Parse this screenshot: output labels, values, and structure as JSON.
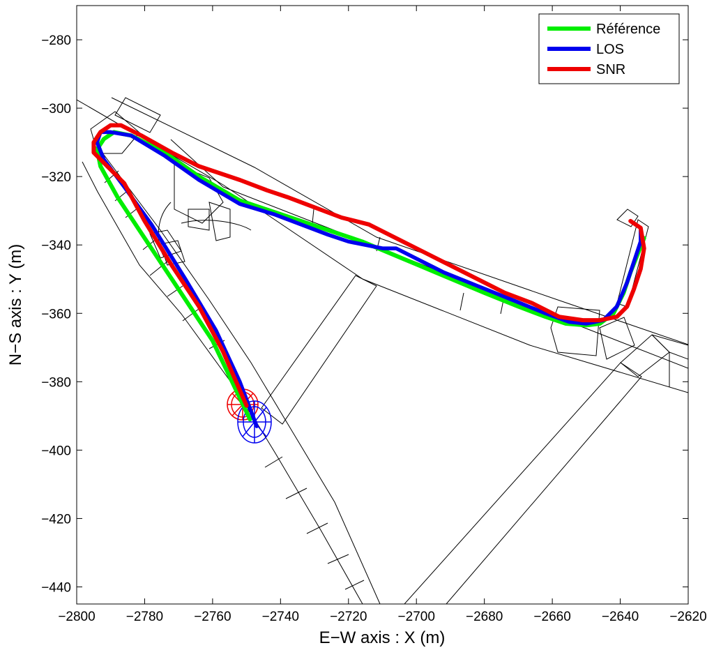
{
  "chart_data": {
    "type": "line",
    "xlabel": "E−W axis : X (m)",
    "ylabel": "N−S axis : Y (m)",
    "xlim": [
      -2800,
      -2620
    ],
    "ylim": [
      -445,
      -270
    ],
    "xticks": [
      -2800,
      -2780,
      -2760,
      -2740,
      -2720,
      -2700,
      -2680,
      -2660,
      -2640,
      -2620
    ],
    "yticks": [
      -280,
      -300,
      -320,
      -340,
      -360,
      -380,
      -400,
      -420,
      -440
    ],
    "xtick_labels": [
      "−2800",
      "−2780",
      "−2760",
      "−2740",
      "−2720",
      "−2700",
      "−2680",
      "−2660",
      "−2640",
      "−2620"
    ],
    "ytick_labels": [
      "−280",
      "−300",
      "−320",
      "−340",
      "−360",
      "−380",
      "−400",
      "−420",
      "−440"
    ],
    "grid": false,
    "legend_position": "top-right",
    "series": [
      {
        "name": "Référence",
        "color": "#00ee00",
        "x": [
          -2749,
          -2760,
          -2770,
          -2780,
          -2788,
          -2793,
          -2794,
          -2792,
          -2789,
          -2784,
          -2774,
          -2764,
          -2752,
          -2740,
          -2728,
          -2716,
          -2704,
          -2692,
          -2680,
          -2670,
          -2662,
          -2656,
          -2650,
          -2646,
          -2642,
          -2639,
          -2637,
          -2635,
          -2633
        ],
        "y": [
          -391,
          -368,
          -353,
          -338,
          -326,
          -317,
          -312,
          -309,
          -307,
          -308,
          -313,
          -320,
          -327,
          -331,
          -335,
          -339,
          -344,
          -349,
          -354,
          -358,
          -361,
          -363,
          -363.5,
          -363,
          -360,
          -354,
          -348,
          -343,
          -338
        ]
      },
      {
        "name": "LOS",
        "color": "#0000ee",
        "x": [
          -2747,
          -2752,
          -2759,
          -2768,
          -2778,
          -2786,
          -2792,
          -2794,
          -2793,
          -2790,
          -2784,
          -2774,
          -2764,
          -2752,
          -2742,
          -2734,
          -2726,
          -2720,
          -2715,
          -2710,
          -2706,
          -2700,
          -2692,
          -2682,
          -2672,
          -2662,
          -2655,
          -2650,
          -2645,
          -2641,
          -2638,
          -2636,
          -2634,
          -2634
        ],
        "y": [
          -393,
          -380,
          -365,
          -350,
          -334,
          -323,
          -315,
          -310,
          -307,
          -307,
          -308,
          -314,
          -321,
          -328,
          -331,
          -334,
          -337,
          -339,
          -340,
          -341,
          -341,
          -344,
          -348,
          -352,
          -356,
          -360,
          -362.5,
          -363,
          -362,
          -358,
          -351,
          -345,
          -339,
          -335
        ]
      },
      {
        "name": "SNR",
        "color": "#ee0000",
        "x": [
          -2750,
          -2757,
          -2764,
          -2772,
          -2780,
          -2786,
          -2792,
          -2795,
          -2795,
          -2793,
          -2790,
          -2787,
          -2781,
          -2772,
          -2764,
          -2752,
          -2744,
          -2738,
          -2730,
          -2722,
          -2714,
          -2706,
          -2698,
          -2690,
          -2682,
          -2674,
          -2666,
          -2658,
          -2651,
          -2646,
          -2641,
          -2638,
          -2636,
          -2634,
          -2633,
          -2634,
          -2637
        ],
        "y": [
          -387,
          -371,
          -358,
          -346,
          -333,
          -322,
          -316,
          -313,
          -310,
          -307,
          -305,
          -305,
          -308,
          -313,
          -317,
          -321,
          -324,
          -326,
          -329,
          -332,
          -334,
          -338,
          -342,
          -346,
          -350,
          -354,
          -357,
          -361,
          -362,
          -362,
          -361,
          -358,
          -353,
          -347,
          -341,
          -335,
          -333
        ]
      }
    ]
  }
}
